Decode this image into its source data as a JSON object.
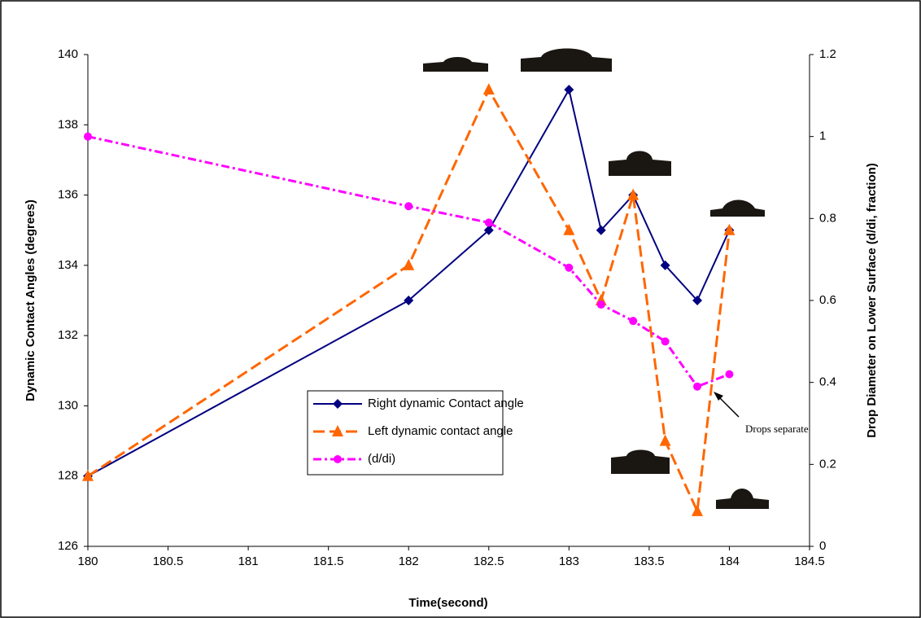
{
  "chart_data": {
    "type": "line",
    "x_label": "Time(second)",
    "y_label": "Dynamic Contact Angles (degrees)",
    "y2_label": "Drop Diameter on Lower Surface (d/di, fraction)",
    "x": [
      180,
      182,
      182.5,
      183,
      183.2,
      183.4,
      183.6,
      183.8,
      184
    ],
    "series": [
      {
        "name": "Right dynamic Contact angle",
        "color": "#000080",
        "marker": "diamond",
        "dash": "solid",
        "values": [
          128,
          133,
          135,
          139,
          135,
          136,
          134,
          133,
          135
        ]
      },
      {
        "name": "Left dynamic contact angle",
        "color": "#ff6600",
        "marker": "triangle",
        "dash": "dashed",
        "values": [
          128,
          134,
          139,
          135,
          133,
          136,
          129,
          127,
          135
        ]
      },
      {
        "name": " (d/di)",
        "color": "#ff00ff",
        "marker": "circle",
        "dash": "dashdot",
        "axis": "y2",
        "values": [
          1.0,
          0.83,
          0.79,
          0.68,
          0.59,
          0.55,
          0.5,
          0.39,
          0.42
        ]
      }
    ],
    "xlim": [
      180,
      184.5
    ],
    "xticks": [
      180,
      180.5,
      181,
      181.5,
      182,
      182.5,
      183,
      183.5,
      184,
      184.5
    ],
    "ylim": [
      126,
      140
    ],
    "yticks": [
      126,
      128,
      130,
      132,
      134,
      136,
      138,
      140
    ],
    "y2lim": [
      0,
      1.2
    ],
    "y2ticks": [
      0,
      0.2,
      0.4,
      0.6,
      0.8,
      1,
      1.2
    ],
    "grid": false,
    "annotation": "Drops separate"
  }
}
